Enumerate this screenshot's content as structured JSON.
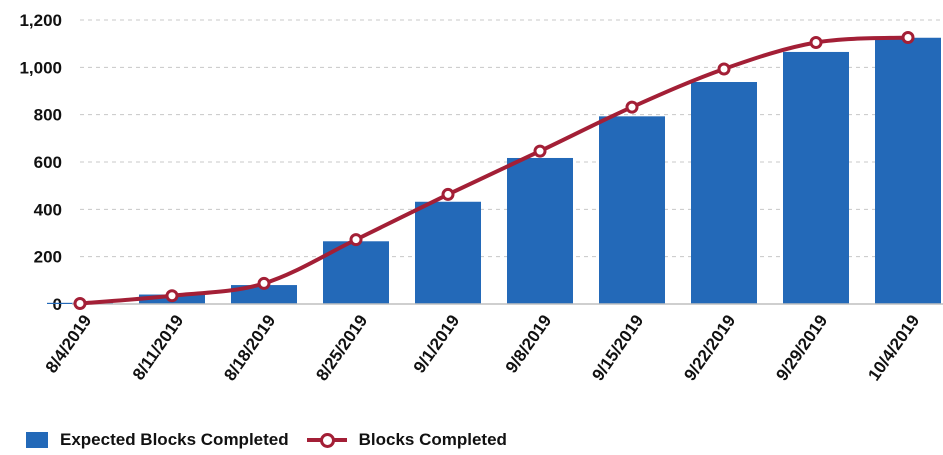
{
  "chart_data": {
    "type": "bar",
    "categories": [
      "8/4/2019",
      "8/11/2019",
      "8/18/2019",
      "8/25/2019",
      "9/1/2019",
      "9/8/2019",
      "9/15/2019",
      "9/22/2019",
      "9/29/2019",
      "10/4/2019"
    ],
    "series": [
      {
        "name": "Expected Blocks Completed",
        "type": "bar",
        "color": "#2369b8",
        "values": [
          5,
          40,
          80,
          265,
          432,
          617,
          793,
          938,
          1065,
          1125
        ]
      },
      {
        "name": "Blocks Completed",
        "type": "line",
        "color": "#a31f36",
        "values": [
          2,
          35,
          87,
          272,
          463,
          646,
          832,
          993,
          1105,
          1126
        ]
      }
    ],
    "ylim": [
      0,
      1200
    ],
    "yticks": [
      0,
      200,
      400,
      600,
      800,
      1000,
      1200
    ],
    "ytick_labels": [
      "0",
      "200",
      "400",
      "600",
      "800",
      "1,000",
      "1,200"
    ],
    "grid": "horizontal dashed",
    "legend_position": "bottom-left",
    "title": "",
    "xlabel": "",
    "ylabel": ""
  }
}
